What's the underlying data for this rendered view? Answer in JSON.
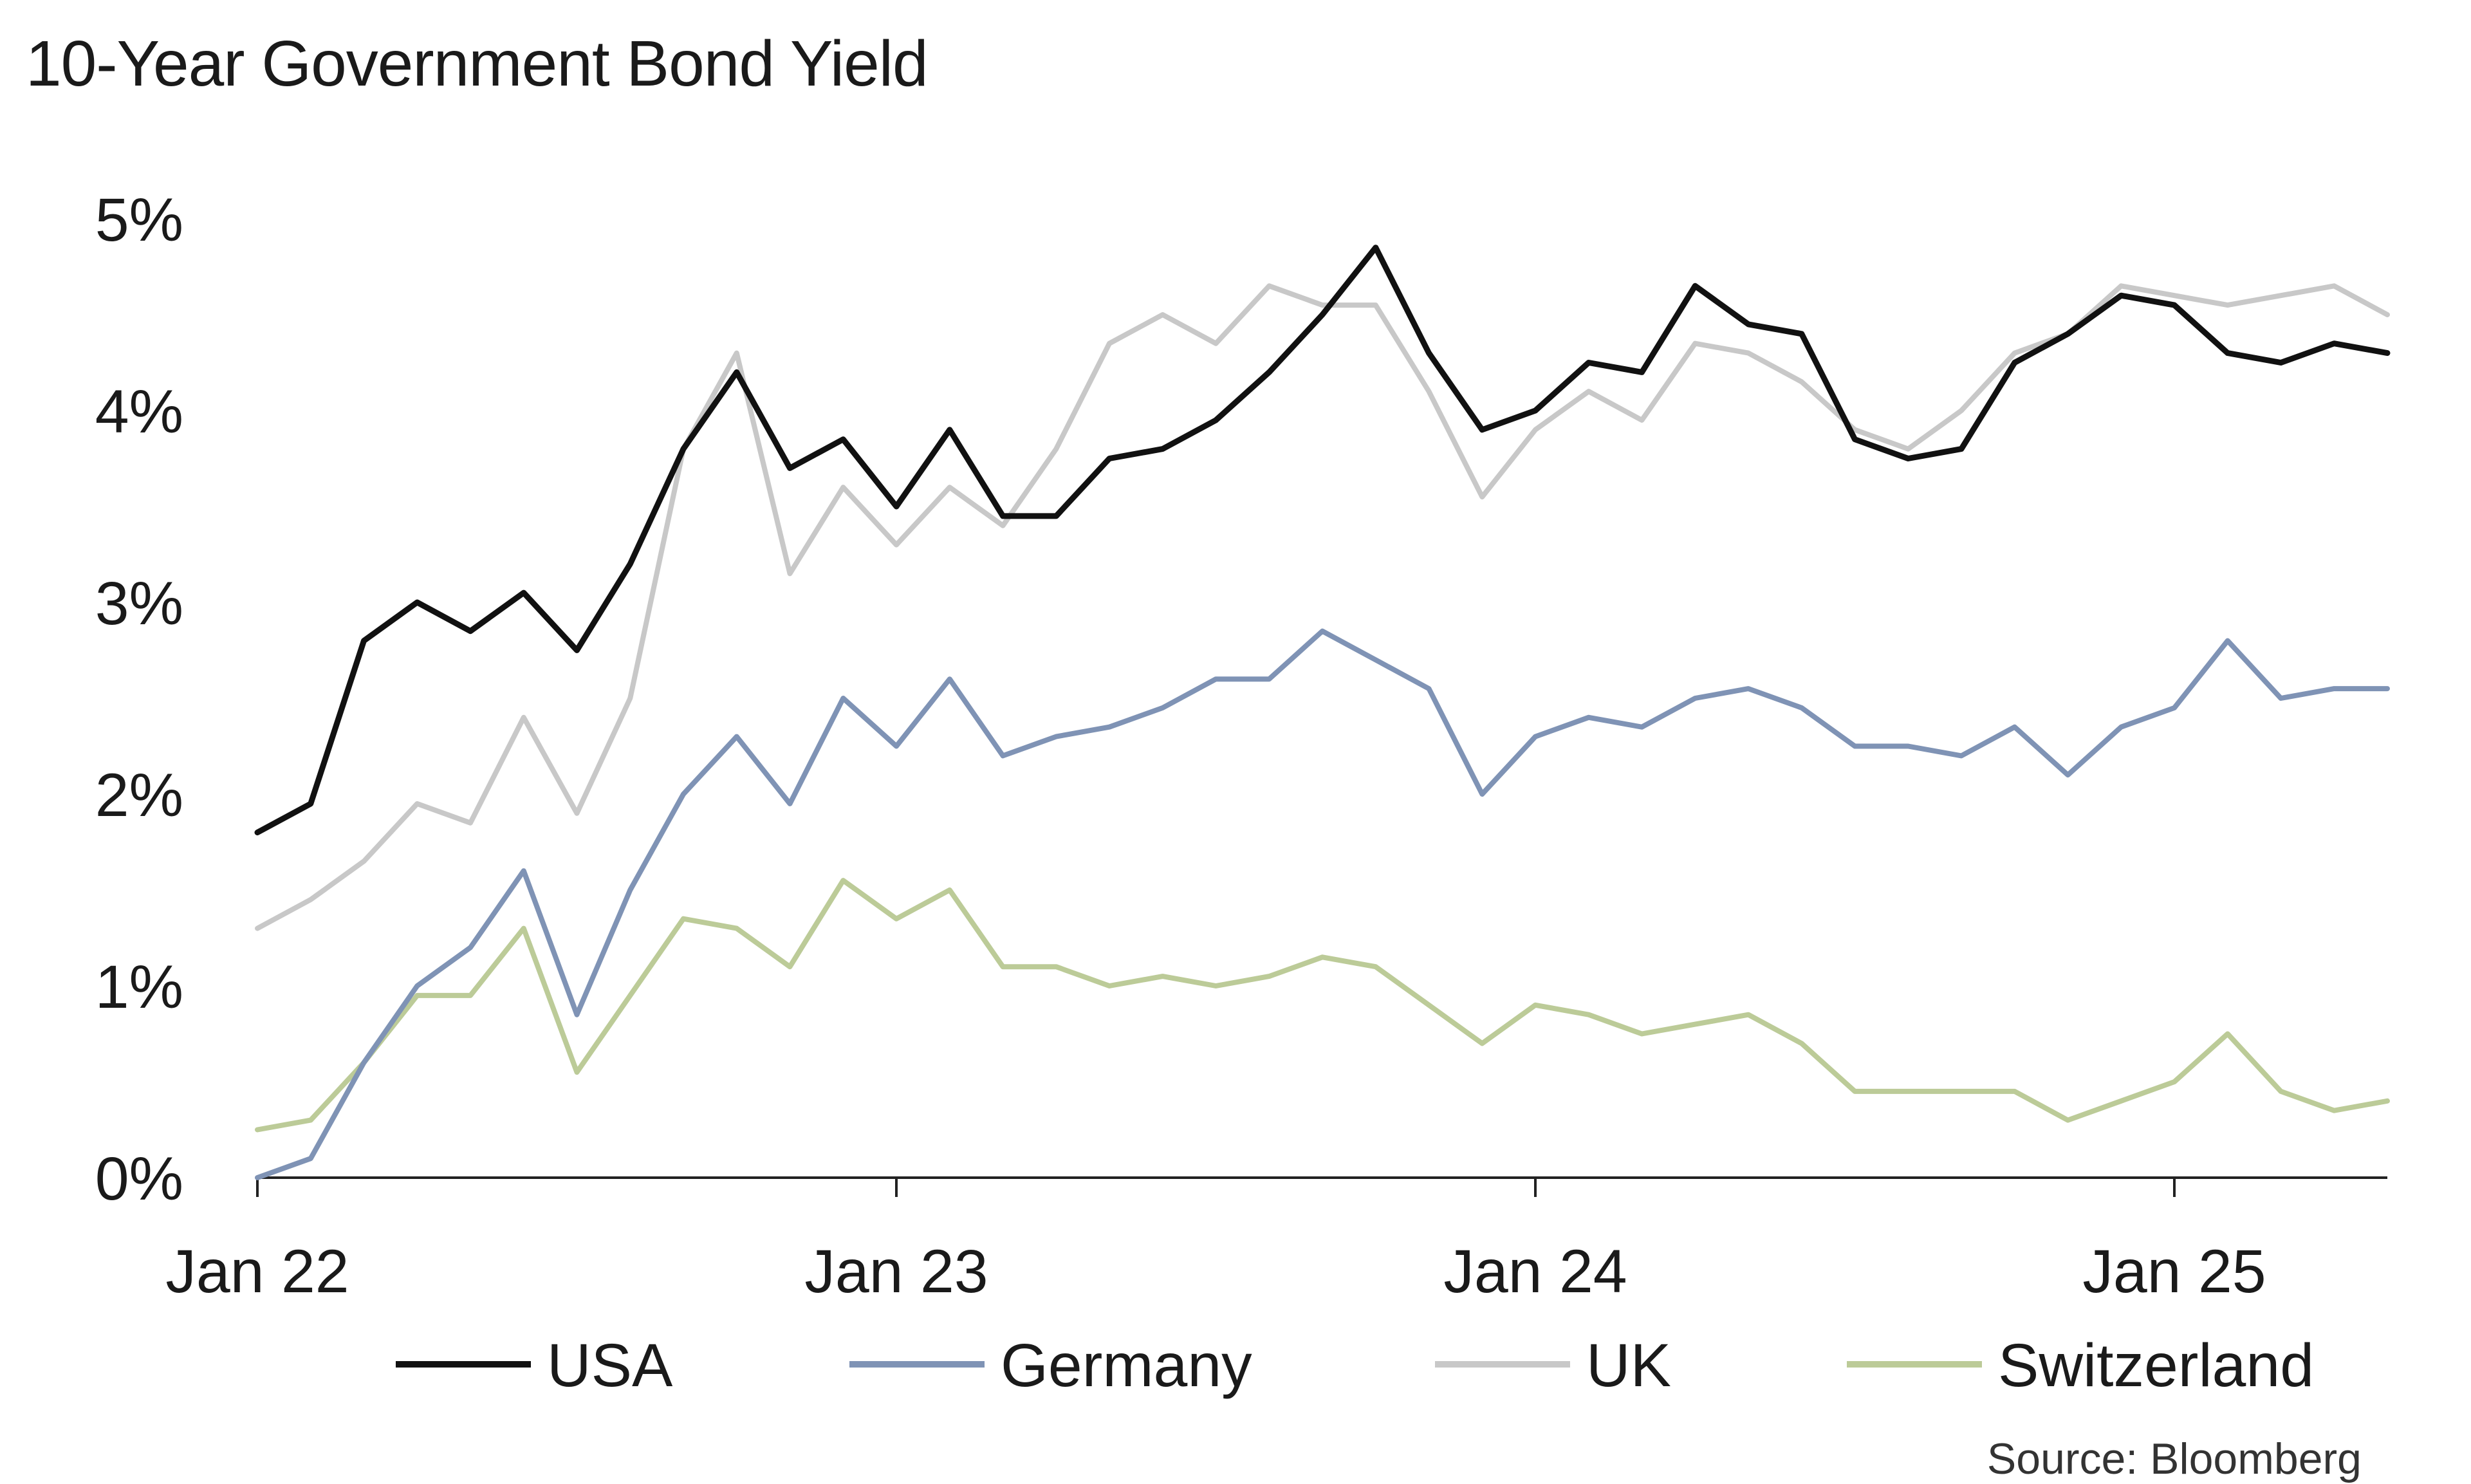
{
  "chart_data": {
    "type": "line",
    "title": "10-Year Government Bond Yield",
    "source": "Source: Bloomberg",
    "xlabel": "",
    "ylabel": "",
    "x_ticks": [
      {
        "label": "Jan 22",
        "date": "2022-01"
      },
      {
        "label": "Jan 23",
        "date": "2023-01"
      },
      {
        "label": "Jan 24",
        "date": "2024-01"
      },
      {
        "label": "Jan 25",
        "date": "2025-01"
      }
    ],
    "y_ticks": [
      {
        "label": "0%",
        "value": 0
      },
      {
        "label": "1%",
        "value": 1
      },
      {
        "label": "2%",
        "value": 2
      },
      {
        "label": "3%",
        "value": 3
      },
      {
        "label": "4%",
        "value": 4
      },
      {
        "label": "5%",
        "value": 5
      }
    ],
    "ylim": [
      0,
      5
    ],
    "xlim": [
      "2022-01",
      "2025-05"
    ],
    "grid": false,
    "legend_position": "bottom",
    "x": [
      "2022-01",
      "2022-02",
      "2022-03",
      "2022-04",
      "2022-05",
      "2022-06",
      "2022-07",
      "2022-08",
      "2022-09",
      "2022-10",
      "2022-11",
      "2022-12",
      "2023-01",
      "2023-02",
      "2023-03",
      "2023-04",
      "2023-05",
      "2023-06",
      "2023-07",
      "2023-08",
      "2023-09",
      "2023-10",
      "2023-11",
      "2023-12",
      "2024-01",
      "2024-02",
      "2024-03",
      "2024-04",
      "2024-05",
      "2024-06",
      "2024-07",
      "2024-08",
      "2024-09",
      "2024-10",
      "2024-11",
      "2024-12",
      "2025-01",
      "2025-02",
      "2025-03",
      "2025-04",
      "2025-05"
    ],
    "series": [
      {
        "name": "USA",
        "color": "#111111",
        "values": [
          1.8,
          1.95,
          2.8,
          3.0,
          2.85,
          3.05,
          2.75,
          3.2,
          3.8,
          4.2,
          3.7,
          3.85,
          3.5,
          3.9,
          3.45,
          3.45,
          3.75,
          3.8,
          3.95,
          4.2,
          4.5,
          4.85,
          4.3,
          3.9,
          4.0,
          4.25,
          4.2,
          4.65,
          4.45,
          4.4,
          3.85,
          3.75,
          3.8,
          4.25,
          4.4,
          4.6,
          4.55,
          4.3,
          4.25,
          4.35,
          4.3
        ]
      },
      {
        "name": "Germany",
        "color": "#7f93b5",
        "values": [
          0.0,
          0.1,
          0.6,
          1.0,
          1.2,
          1.6,
          0.85,
          1.5,
          2.0,
          2.3,
          1.95,
          2.5,
          2.25,
          2.6,
          2.2,
          2.3,
          2.35,
          2.45,
          2.6,
          2.6,
          2.85,
          2.7,
          2.55,
          2.0,
          2.3,
          2.4,
          2.35,
          2.5,
          2.55,
          2.45,
          2.25,
          2.25,
          2.2,
          2.35,
          2.1,
          2.35,
          2.45,
          2.8,
          2.5,
          2.55,
          2.55
        ]
      },
      {
        "name": "UK",
        "color": "#c8c8c8",
        "values": [
          1.3,
          1.45,
          1.65,
          1.95,
          1.85,
          2.4,
          1.9,
          2.5,
          3.8,
          4.3,
          3.15,
          3.6,
          3.3,
          3.6,
          3.4,
          3.8,
          4.35,
          4.5,
          4.35,
          4.65,
          4.55,
          4.55,
          4.1,
          3.55,
          3.9,
          4.1,
          3.95,
          4.35,
          4.3,
          4.15,
          3.9,
          3.8,
          4.0,
          4.3,
          4.4,
          4.65,
          4.6,
          4.55,
          4.6,
          4.65,
          4.5
        ]
      },
      {
        "name": "Switzerland",
        "color": "#bccb98",
        "values": [
          0.25,
          0.3,
          0.6,
          0.95,
          0.95,
          1.3,
          0.55,
          0.95,
          1.35,
          1.3,
          1.1,
          1.55,
          1.35,
          1.5,
          1.1,
          1.1,
          1.0,
          1.05,
          1.0,
          1.05,
          1.15,
          1.1,
          0.9,
          0.7,
          0.9,
          0.85,
          0.75,
          0.8,
          0.85,
          0.7,
          0.45,
          0.45,
          0.45,
          0.45,
          0.3,
          0.4,
          0.5,
          0.75,
          0.45,
          0.35,
          0.4
        ]
      }
    ]
  }
}
